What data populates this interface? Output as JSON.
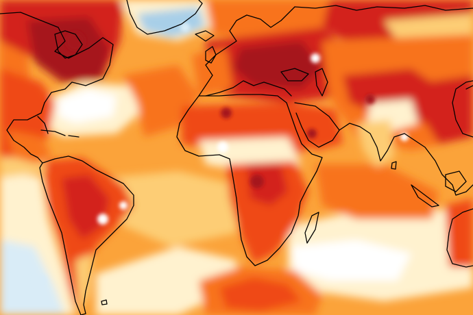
{
  "map": {
    "projection": "equirectangular",
    "coastlines": true,
    "legend": "none",
    "title": ""
  },
  "palette": {
    "dark_red": "#a6121b",
    "red": "#d3231d",
    "red_orange": "#ef4a12",
    "orange": "#f8731a",
    "light_orange": "#fba33a",
    "peach": "#fdcd74",
    "cream": "#fff2cf",
    "white": "#ffffff",
    "light_blue": "#d9ecf7",
    "blue": "#a8cfe8",
    "coastline": "#000000"
  },
  "regions": [
    {
      "name": "northern-canada",
      "anomaly": "very-warm"
    },
    {
      "name": "eastern-europe-western-russia",
      "anomaly": "very-warm"
    },
    {
      "name": "north-atlantic-east-of-us",
      "anomaly": "neutral"
    },
    {
      "name": "south-atlantic-southeast-pacific",
      "anomaly": "neutral-to-cool"
    },
    {
      "name": "greenland",
      "anomaly": "cool"
    },
    {
      "name": "central-africa",
      "anomaly": "very-warm"
    },
    {
      "name": "tropical-indian-ocean",
      "anomaly": "warm"
    }
  ]
}
